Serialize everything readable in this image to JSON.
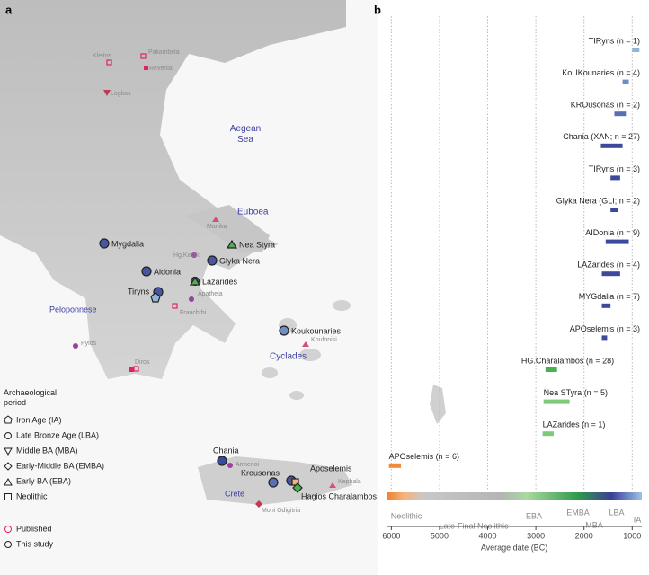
{
  "map": {
    "panel_label": "a",
    "labels": [
      "Paliambela",
      "Kleitos",
      "Revenia",
      "Logkas",
      "Aegean Sea",
      "Euboea",
      "Manika",
      "Nea Styra",
      "Mygdalia",
      "Hg.Kiriaki",
      "Aidonia",
      "Glyka Nera",
      "Lazarides",
      "Tiryns",
      "Apatheia",
      "Peloponnese",
      "Franchthi",
      "Koukounaries",
      "Koufonisi",
      "Cyclades",
      "Pylos",
      "Diros",
      "Chania",
      "Armenoi",
      "Krousonas",
      "Aposelemis",
      "Kephala",
      "Crete",
      "Hagios Charalambos",
      "Moni Odigitria"
    ],
    "legend": {
      "title": "Archaeological period",
      "periods": [
        "Iron Age (IA)",
        "Late Bronze Age (LBA)",
        "Middle BA (MBA)",
        "Early-Middle BA (EMBA)",
        "Early BA (EBA)",
        "Neolithic"
      ],
      "sources": [
        "Published",
        "This study"
      ]
    }
  },
  "chart_data": {
    "type": "range-bar",
    "panel_label": "b",
    "x_label": "Average date (BC)",
    "xlim": [
      6100,
      800
    ],
    "xticks": [
      6000,
      5000,
      4000,
      3000,
      2000,
      1000
    ],
    "grid": true,
    "categories": [
      "TIRyns (n = 1)",
      "KoUKounaries (n = 4)",
      "KROusonas (n = 2)",
      "Chania (XAN; n = 27)",
      "TIRyns (n = 3)",
      "Glyka Nera (GLI; n = 2)",
      "AIDonia (n = 9)",
      "LAZarides (n = 4)",
      "MYGdalia (n = 7)",
      "APOselemis (n = 3)",
      "HG.Charalambos (n = 28)",
      "Nea STyra (n = 5)",
      "LAZarides (n = 1)",
      "APOselemis (n = 6)"
    ],
    "values": [
      [
        1000,
        850
      ],
      [
        1200,
        1070
      ],
      [
        1370,
        1130
      ],
      [
        1650,
        1200
      ],
      [
        1450,
        1250
      ],
      [
        1450,
        1300
      ],
      [
        1550,
        1070
      ],
      [
        1630,
        1250
      ],
      [
        1630,
        1450
      ],
      [
        1630,
        1520
      ],
      [
        2800,
        2560
      ],
      [
        2840,
        2300
      ],
      [
        2860,
        2630
      ],
      [
        6050,
        5800
      ]
    ],
    "colors": [
      "#8fb5d8",
      "#6f8fc4",
      "#5a6eb5",
      "#3d4a9c",
      "#3d4a9c",
      "#3d4a9c",
      "#3d4a9c",
      "#3d4a9c",
      "#3d4a9c",
      "#3d4a9c",
      "#4caf50",
      "#7dcb7a",
      "#7dcb7a",
      "#f08a3c"
    ],
    "periods": [
      "Neolithic",
      "Late-Final Neolithic",
      "EBA",
      "EMBA",
      "MBA",
      "LBA",
      "IA"
    ]
  }
}
